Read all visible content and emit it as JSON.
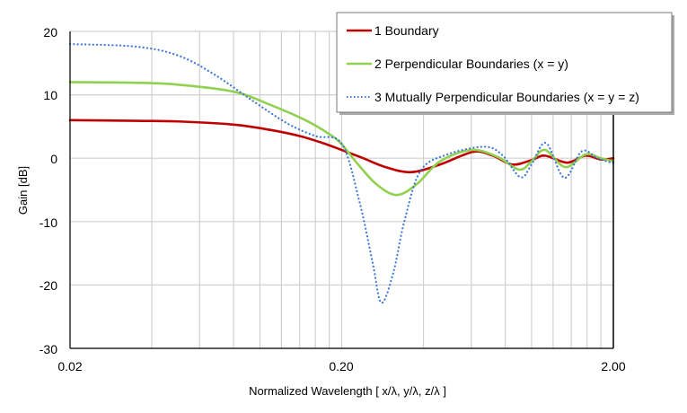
{
  "chart_data": {
    "type": "line",
    "title": "",
    "xlabel": "Normalized Wavelength [ x/λ, y/λ, z/λ ]",
    "ylabel": "Gain [dB]",
    "xscale": "log",
    "xlim": [
      0.02,
      2.0
    ],
    "ylim": [
      -30,
      20
    ],
    "xticks": [
      "0.02",
      "0.20",
      "2.00"
    ],
    "yticks": [
      "20",
      "10",
      "0",
      "-10",
      "-20",
      "-30"
    ],
    "grid": true,
    "legend_position": "top-right",
    "series": [
      {
        "name": "1 Boundary",
        "color": "#c00000",
        "style": "solid",
        "x": [
          0.02,
          0.035,
          0.05,
          0.08,
          0.108,
          0.14,
          0.17,
          0.2,
          0.24,
          0.29,
          0.36,
          0.46,
          0.61,
          0.72,
          0.85,
          1.0,
          1.12,
          1.35,
          1.58,
          1.8,
          2.0
        ],
        "y": [
          6.0,
          5.9,
          5.8,
          5.3,
          4.5,
          3.5,
          2.4,
          1.3,
          0.0,
          -1.4,
          -2.2,
          -1.0,
          1.0,
          0.4,
          -1.0,
          -0.3,
          0.4,
          -0.7,
          0.4,
          -0.2,
          0.0
        ]
      },
      {
        "name": "2 Perpendicular Boundaries (x = y)",
        "color": "#92d050",
        "style": "solid",
        "x": [
          0.02,
          0.035,
          0.05,
          0.08,
          0.108,
          0.147,
          0.18,
          0.2,
          0.23,
          0.27,
          0.32,
          0.38,
          0.46,
          0.6,
          0.75,
          0.9,
          1.0,
          1.12,
          1.33,
          1.58,
          1.8,
          2.0
        ],
        "y": [
          12.0,
          11.9,
          11.6,
          10.5,
          8.5,
          6.0,
          3.8,
          2.2,
          -1.0,
          -4.2,
          -5.8,
          -4.0,
          -0.5,
          1.3,
          0.2,
          -1.8,
          -0.5,
          1.3,
          -1.4,
          0.6,
          0.0,
          -0.5
        ]
      },
      {
        "name": "3 Mutually Perpendicular Boundaries (x = y = z)",
        "color": "#3c78d8",
        "style": "dotted",
        "x": [
          0.02,
          0.035,
          0.05,
          0.068,
          0.093,
          0.126,
          0.16,
          0.2,
          0.232,
          0.26,
          0.28,
          0.31,
          0.34,
          0.39,
          0.49,
          0.67,
          0.78,
          0.91,
          1.0,
          1.13,
          1.32,
          1.53,
          1.75,
          2.0
        ],
        "y": [
          18.0,
          17.6,
          16.2,
          13.2,
          9.2,
          5.5,
          3.5,
          2.3,
          -6.7,
          -16.5,
          -22.8,
          -18.0,
          -10.0,
          -2.0,
          0.6,
          1.8,
          0.5,
          -3.0,
          -1.0,
          2.4,
          -3.1,
          1.1,
          0.0,
          -0.8
        ]
      }
    ]
  }
}
